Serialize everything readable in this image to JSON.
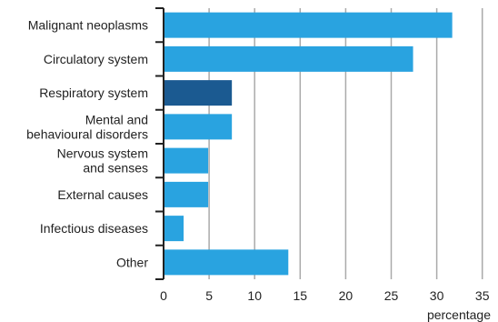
{
  "chart_data": {
    "type": "bar",
    "orientation": "horizontal",
    "categories": [
      [
        "Malignant neoplasms"
      ],
      [
        "Circulatory system"
      ],
      [
        "Respiratory system"
      ],
      [
        "Mental and",
        "behavioural disorders"
      ],
      [
        "Nervous system",
        "and senses"
      ],
      [
        "External causes"
      ],
      [
        "Infectious diseases"
      ],
      [
        "Other"
      ]
    ],
    "values": [
      31.7,
      27.4,
      7.5,
      7.5,
      4.9,
      4.9,
      2.2,
      13.7
    ],
    "highlight_index": 2,
    "colors": {
      "bar": "#29a3e0",
      "highlight": "#1b5a91",
      "grid": "#aaaaaa",
      "axis": "#222222"
    },
    "xlim": [
      0,
      35
    ],
    "xticks": [
      "0",
      "5",
      "10",
      "15",
      "20",
      "25",
      "30",
      "35"
    ],
    "xlabel": "percentage",
    "grid": "vertical"
  }
}
